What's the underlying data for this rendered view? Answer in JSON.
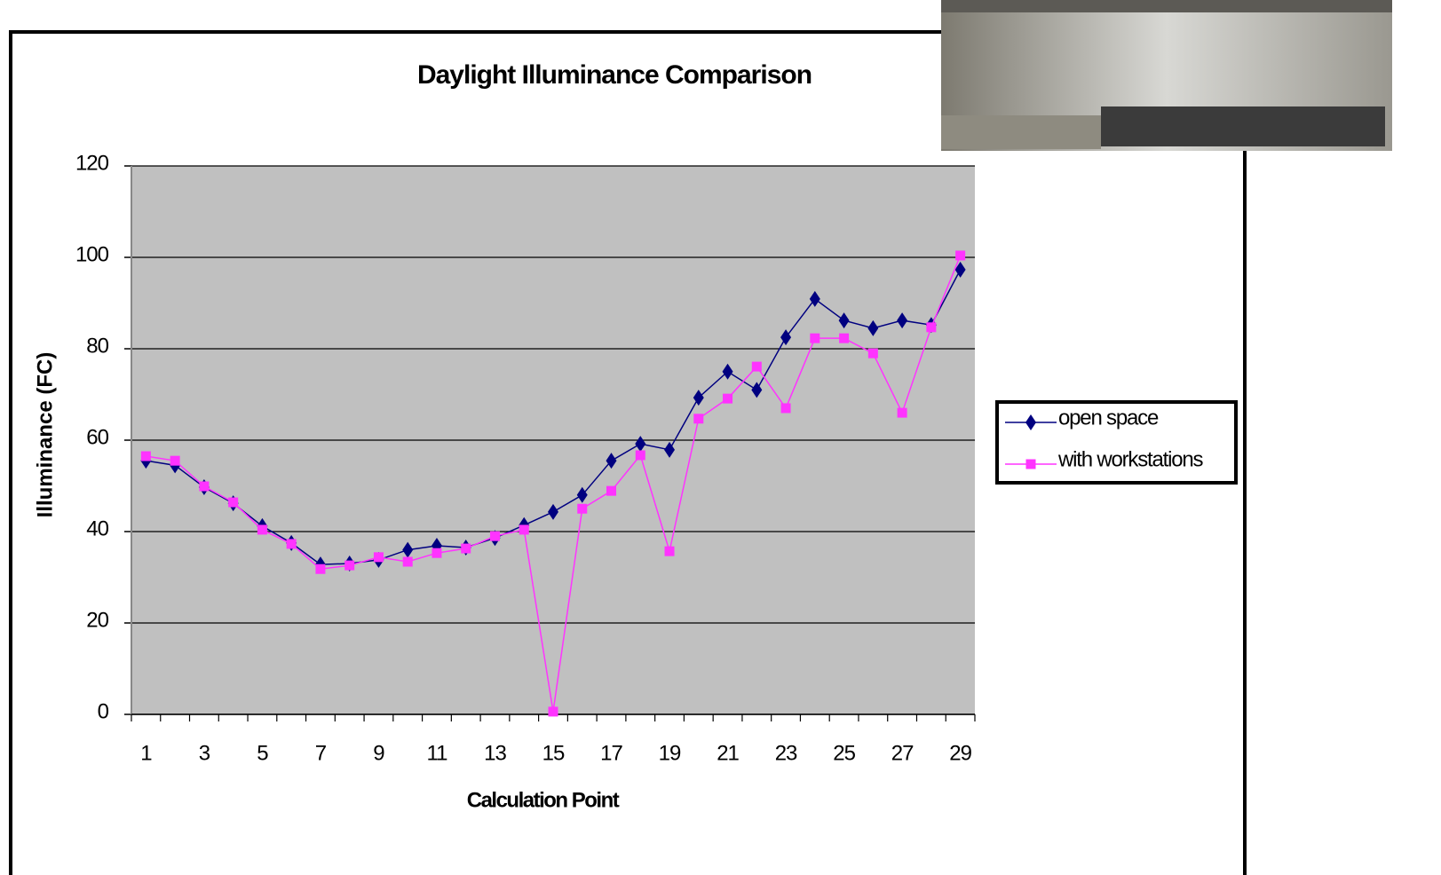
{
  "chart_data": {
    "type": "line",
    "title": "Daylight Illuminance Comparison",
    "x_label": "Calculation Point",
    "y_label": "Illuminance (FC)",
    "categories": [
      "1",
      null,
      "3",
      null,
      "5",
      null,
      "7",
      null,
      "9",
      null,
      "11",
      null,
      "13",
      null,
      "15",
      null,
      "17",
      null,
      "19",
      null,
      "21",
      null,
      "23",
      null,
      "25",
      null,
      "27",
      null,
      "29"
    ],
    "series": [
      {
        "name": "open space",
        "color": "#000080",
        "marker": "diamond",
        "values": [
          55.5,
          54.5,
          49.7,
          46.2,
          41.2,
          37.5,
          32.8,
          33,
          33.8,
          36,
          36.9,
          36.5,
          38.6,
          41.4,
          44.3,
          48,
          55.5,
          59.2,
          57.9,
          69.3,
          75,
          71,
          82.5,
          90.9,
          86.2,
          84.5,
          86.2,
          85.2,
          97.3
        ]
      },
      {
        "name": "with workstations",
        "color": "#ff33ff",
        "marker": "square",
        "values": [
          56.5,
          55.5,
          49.9,
          46.4,
          40.4,
          37.3,
          31.8,
          32.6,
          34.4,
          33.4,
          35.3,
          36.3,
          39,
          40.4,
          0.6,
          45,
          48.9,
          56.7,
          35.7,
          64.7,
          69.1,
          76.1,
          67,
          82.3,
          82.3,
          79,
          66,
          84.7,
          100.4
        ]
      }
    ],
    "ylim": [
      0,
      120
    ],
    "yticks": [
      0,
      20,
      40,
      60,
      80,
      100,
      120
    ],
    "grid": true,
    "legend": "right"
  }
}
